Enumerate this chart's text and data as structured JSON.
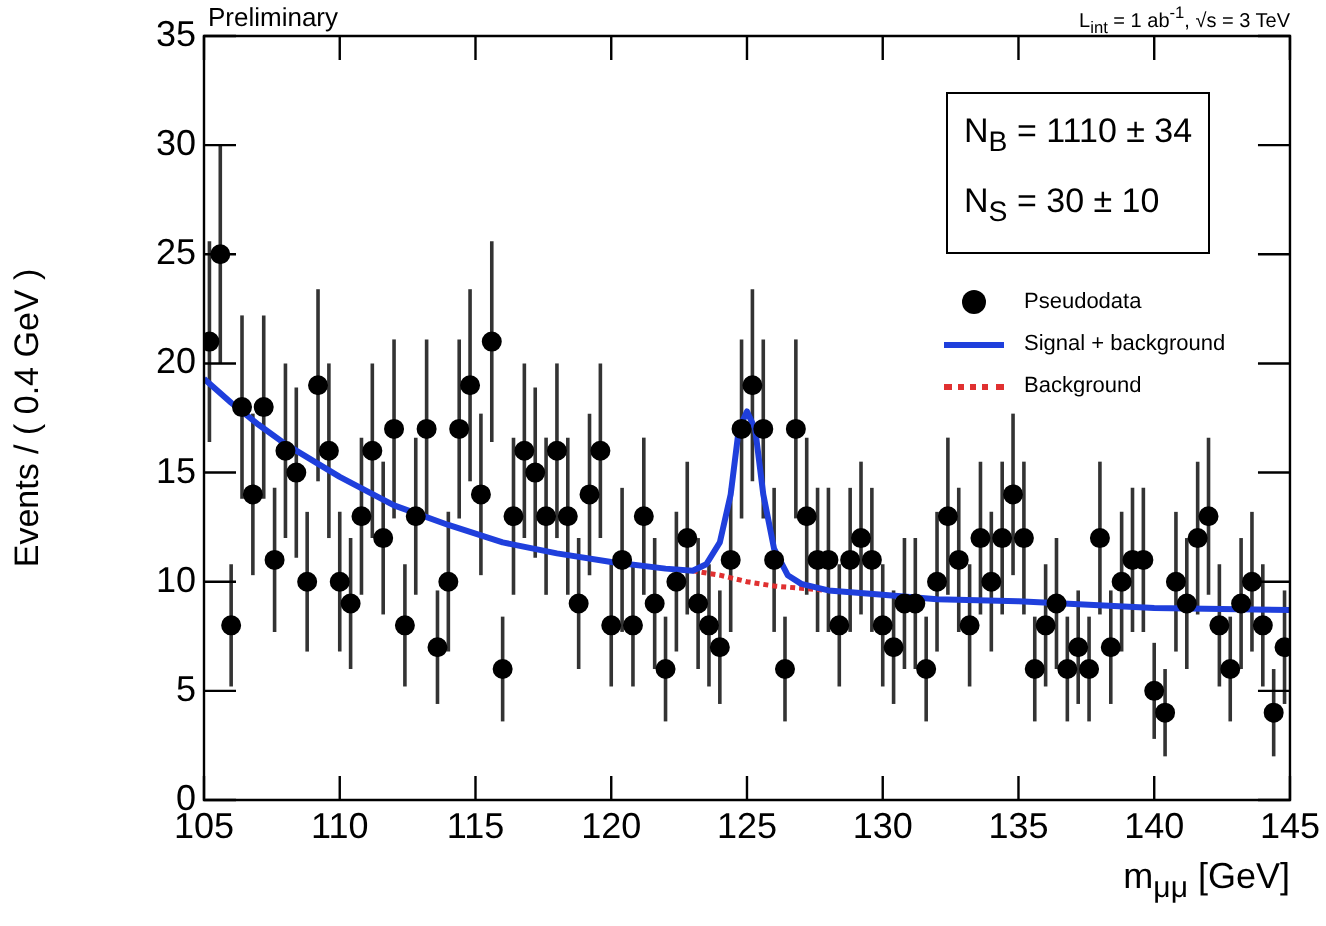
{
  "chart_data": {
    "type": "scatter",
    "xlabel": "m$_{μμ}$   [GeV]",
    "ylabel": "Events / ( 0.4 GeV )",
    "annotations": [
      "Preliminary",
      "L$_{int}$ = 1 ab$^{-1}$, √s = 3 TeV",
      "N$_{B}$ =  1110 ± 34",
      "N$_{S}$ =  30 ± 10"
    ],
    "xlim": [
      105,
      145
    ],
    "xticks": [
      105,
      110,
      115,
      120,
      125,
      130,
      135,
      140,
      145
    ],
    "ylim": [
      0,
      35
    ],
    "yticks": [
      0,
      5,
      10,
      15,
      20,
      25,
      30,
      35
    ],
    "grid": false,
    "legend": "top right",
    "series": [
      {
        "name": "Pseudodata",
        "type": "scatter",
        "color": "#000000",
        "marker": "circle",
        "x": [
          105.2,
          105.6,
          106.0,
          106.4,
          106.8,
          107.2,
          107.6,
          108.0,
          108.4,
          108.8,
          109.2,
          109.6,
          110.0,
          110.4,
          110.8,
          111.2,
          111.6,
          112.0,
          112.4,
          112.8,
          113.2,
          113.6,
          114.0,
          114.4,
          114.8,
          115.2,
          115.6,
          116.0,
          116.4,
          116.8,
          117.2,
          117.6,
          118.0,
          118.4,
          118.8,
          119.2,
          119.6,
          120.0,
          120.4,
          120.8,
          121.2,
          121.6,
          122.0,
          122.4,
          122.8,
          123.2,
          123.6,
          124.0,
          124.4,
          124.8,
          125.2,
          125.6,
          126.0,
          126.4,
          126.8,
          127.2,
          127.6,
          128.0,
          128.4,
          128.8,
          129.2,
          129.6,
          130.0,
          130.4,
          130.8,
          131.2,
          131.6,
          132.0,
          132.4,
          132.8,
          133.2,
          133.6,
          134.0,
          134.4,
          134.8,
          135.2,
          135.6,
          136.0,
          136.4,
          136.8,
          137.2,
          137.6,
          138.0,
          138.4,
          138.8,
          139.2,
          139.6,
          140.0,
          140.4,
          140.8,
          141.2,
          141.6,
          142.0,
          142.4,
          142.8,
          143.2,
          143.6,
          144.0,
          144.4,
          144.8
        ],
        "values": [
          21,
          25,
          8,
          18,
          14,
          18,
          11,
          16,
          15,
          10,
          19,
          16,
          10,
          9,
          13,
          16,
          12,
          17,
          8,
          13,
          17,
          7,
          10,
          17,
          19,
          14,
          21,
          6,
          13,
          16,
          15,
          13,
          16,
          13,
          9,
          14,
          16,
          8,
          11,
          8,
          13,
          9,
          6,
          10,
          12,
          9,
          8,
          7,
          11,
          17,
          19,
          17,
          11,
          6,
          17,
          13,
          11,
          11,
          8,
          11,
          12,
          11,
          8,
          7,
          9,
          9,
          6,
          10,
          13,
          11,
          8,
          12,
          10,
          12,
          14,
          12,
          6,
          8,
          9,
          6,
          7,
          6,
          12,
          7,
          10,
          11,
          11,
          5,
          4,
          10,
          9,
          12,
          13,
          8,
          6,
          9,
          10,
          8,
          4,
          7
        ],
        "errors": [
          4.6,
          5,
          2.8,
          4.2,
          3.7,
          4.2,
          3.3,
          4,
          3.9,
          3.2,
          4.4,
          4,
          3.2,
          3,
          3.6,
          4,
          3.5,
          4.1,
          2.8,
          3.6,
          4.1,
          2.6,
          3.2,
          4.1,
          4.4,
          3.7,
          4.6,
          2.4,
          3.6,
          4,
          3.9,
          3.6,
          4,
          3.6,
          3,
          3.7,
          4,
          2.8,
          3.3,
          2.8,
          3.6,
          3,
          2.4,
          3.2,
          3.5,
          3,
          2.8,
          2.6,
          3.3,
          4.1,
          4.4,
          4.1,
          3.3,
          2.4,
          4.1,
          3.6,
          3.3,
          3.3,
          2.8,
          3.3,
          3.5,
          3.3,
          2.8,
          2.6,
          3,
          3,
          2.4,
          3.2,
          3.6,
          3.3,
          2.8,
          3.5,
          3.2,
          3.5,
          3.7,
          3.5,
          2.4,
          2.8,
          3,
          2.4,
          2.6,
          2.4,
          3.5,
          2.6,
          3.2,
          3.3,
          3.3,
          2.2,
          2,
          3.2,
          3,
          3.5,
          3.6,
          2.8,
          2.4,
          3,
          3.2,
          2.8,
          2,
          2.6
        ]
      },
      {
        "name": "Signal + background",
        "type": "line",
        "color": "#1f3fdc",
        "marker": "none",
        "line_style": "solid",
        "x": [
          105,
          106,
          107,
          108,
          110,
          112,
          114,
          116,
          118,
          120,
          122,
          123,
          123.5,
          124,
          124.4,
          124.7,
          125,
          125.3,
          125.6,
          126,
          126.5,
          127,
          128,
          130,
          132,
          135,
          140,
          145
        ],
        "values": [
          19.3,
          18.2,
          17.2,
          16.3,
          14.8,
          13.5,
          12.6,
          11.8,
          11.3,
          10.9,
          10.6,
          10.5,
          10.8,
          11.8,
          14,
          17,
          17.8,
          17,
          14,
          11.5,
          10.3,
          9.9,
          9.6,
          9.4,
          9.2,
          9.1,
          8.8,
          8.7
        ]
      },
      {
        "name": "Background",
        "type": "line",
        "color": "#e03030",
        "marker": "none",
        "line_style": "dotted",
        "x": [
          123,
          124,
          125,
          126,
          127,
          128
        ],
        "values": [
          10.5,
          10.3,
          10.0,
          9.8,
          9.7,
          9.6
        ]
      }
    ]
  }
}
